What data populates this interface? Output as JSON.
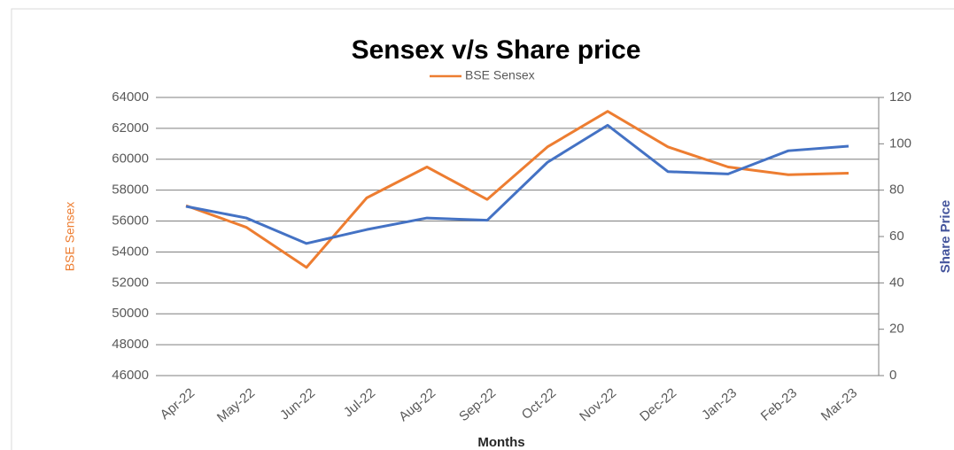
{
  "chart_data": {
    "type": "line",
    "title": "Sensex v/s Share price",
    "x_label": "Months",
    "y_label": "BSE Sensex",
    "y2_label": "Share Price",
    "categories": [
      "Apr-22",
      "May-22",
      "Jun-22",
      "Jul-22",
      "Aug-22",
      "Sep-22",
      "Oct-22",
      "Nov-22",
      "Dec-22",
      "Jan-23",
      "Feb-23",
      "Mar-23"
    ],
    "series": [
      {
        "name": "BSE Sensex",
        "color": "#ed7d31",
        "values": [
          57000,
          55600,
          53000,
          57500,
          59500,
          57400,
          60800,
          63100,
          60800,
          59500,
          59000,
          59100
        ]
      },
      {
        "color": "#4472c4",
        "axis": "y2",
        "values": [
          73,
          68,
          57,
          63,
          68,
          67,
          92,
          108,
          88,
          87,
          97,
          99
        ]
      }
    ],
    "ylim": [
      46000,
      64000
    ],
    "yticks": [
      46000,
      48000,
      50000,
      52000,
      54000,
      56000,
      58000,
      60000,
      62000,
      64000
    ],
    "y2lim": [
      0,
      120
    ],
    "y2ticks": [
      0,
      20,
      40,
      60,
      80,
      100,
      120
    ],
    "grid": true,
    "legend": "top"
  }
}
